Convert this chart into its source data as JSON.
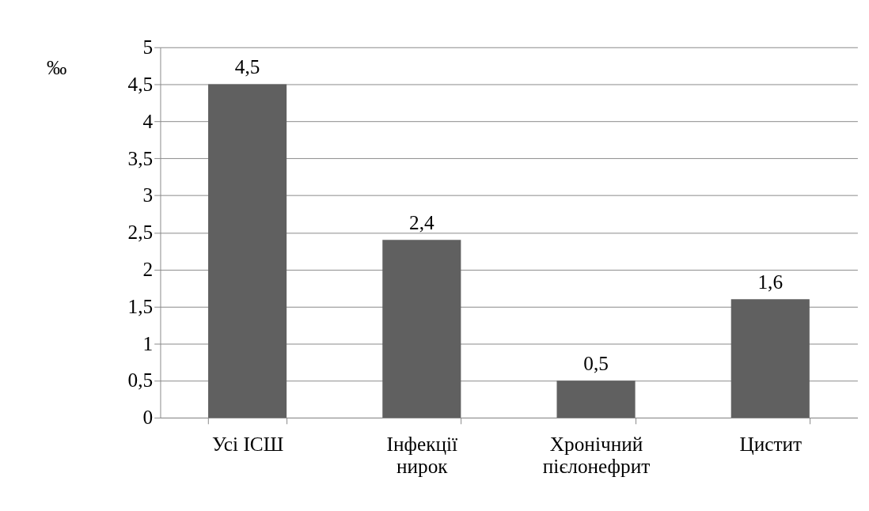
{
  "chart_data": {
    "type": "bar",
    "ylabel": "‰",
    "categories": [
      "Усі ІСШ",
      "Інфекції нирок",
      "Хронічний пієлонефрит",
      "Цистит"
    ],
    "values": [
      4.5,
      2.4,
      0.5,
      1.6
    ],
    "color": "#606060",
    "value_labels": [
      "4,5",
      "2,4",
      "0,5",
      "1,6"
    ],
    "ylim": [
      0,
      5
    ],
    "yticks": [
      0,
      {
        "value": 0.5,
        "label": "0,5"
      },
      1,
      {
        "value": 1.5,
        "label": "1,5"
      },
      2,
      {
        "value": 2.5,
        "label": "2,5"
      },
      3,
      {
        "value": 3.5,
        "label": "3,5"
      },
      4,
      {
        "value": 4.5,
        "label": "4,5"
      },
      5
    ],
    "grid": "y"
  }
}
